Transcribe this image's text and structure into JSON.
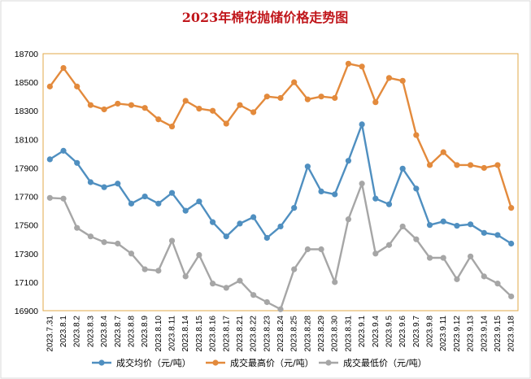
{
  "chart_data": {
    "type": "line",
    "title": "2023年棉花抛储价格走势图",
    "xlabel": "",
    "ylabel": "",
    "ylim": [
      16900,
      18700
    ],
    "yticks": [
      16900,
      17100,
      17300,
      17500,
      17700,
      17900,
      18100,
      18300,
      18500,
      18700
    ],
    "grid": false,
    "legend": "bottom",
    "categories": [
      "2023.7.31",
      "2023.8.1",
      "2023.8.2",
      "2023.8.3",
      "2023.8.4",
      "2023.8.7",
      "2023.8.8",
      "2023.8.9",
      "2023.8.10",
      "2023.8.11",
      "2023.8.14",
      "2023.8.15",
      "2023.8.16",
      "2023.8.17",
      "2023.8.21",
      "2023.8.22",
      "2023.8.23",
      "2023.8.24",
      "2023.8.25",
      "2023.8.28",
      "2023.8.29",
      "2023.8.30",
      "2023.8.31",
      "2023.9.1",
      "2023.9.4",
      "2023.9.5",
      "2023.9.6",
      "2023.9.7",
      "2023.9.8",
      "2023.9.11",
      "2023.9.12",
      "2023.9.13",
      "2023.9.14",
      "2023.9.15",
      "2023.9.18"
    ],
    "series": [
      {
        "name": "成交均价（元/吨）",
        "color": "#4f8fc0",
        "values": [
          17960,
          18020,
          17935,
          17800,
          17765,
          17790,
          17650,
          17700,
          17650,
          17725,
          17600,
          17665,
          17520,
          17420,
          17510,
          17555,
          17410,
          17490,
          17620,
          17910,
          17735,
          17715,
          17950,
          18205,
          17685,
          17645,
          17895,
          17755,
          17500,
          17525,
          17495,
          17505,
          17445,
          17430,
          17370
        ]
      },
      {
        "name": "成交最高价（元/吨）",
        "color": "#e38a3c",
        "values": [
          18470,
          18600,
          18470,
          18340,
          18310,
          18350,
          18340,
          18320,
          18240,
          18190,
          18370,
          18315,
          18300,
          18210,
          18340,
          18290,
          18400,
          18390,
          18500,
          18380,
          18400,
          18390,
          18630,
          18610,
          18360,
          18530,
          18510,
          18130,
          17920,
          18010,
          17920,
          17920,
          17900,
          17920,
          17620
        ]
      },
      {
        "name": "成交最低价（元/吨）",
        "color": "#a6a6a6",
        "values": [
          17690,
          17685,
          17480,
          17420,
          17380,
          17370,
          17300,
          17190,
          17180,
          17390,
          17140,
          17290,
          17090,
          17060,
          17110,
          17010,
          16960,
          16910,
          17190,
          17330,
          17330,
          17100,
          17540,
          17790,
          17300,
          17360,
          17490,
          17400,
          17270,
          17270,
          17120,
          17280,
          17140,
          17090,
          17000
        ]
      }
    ]
  }
}
